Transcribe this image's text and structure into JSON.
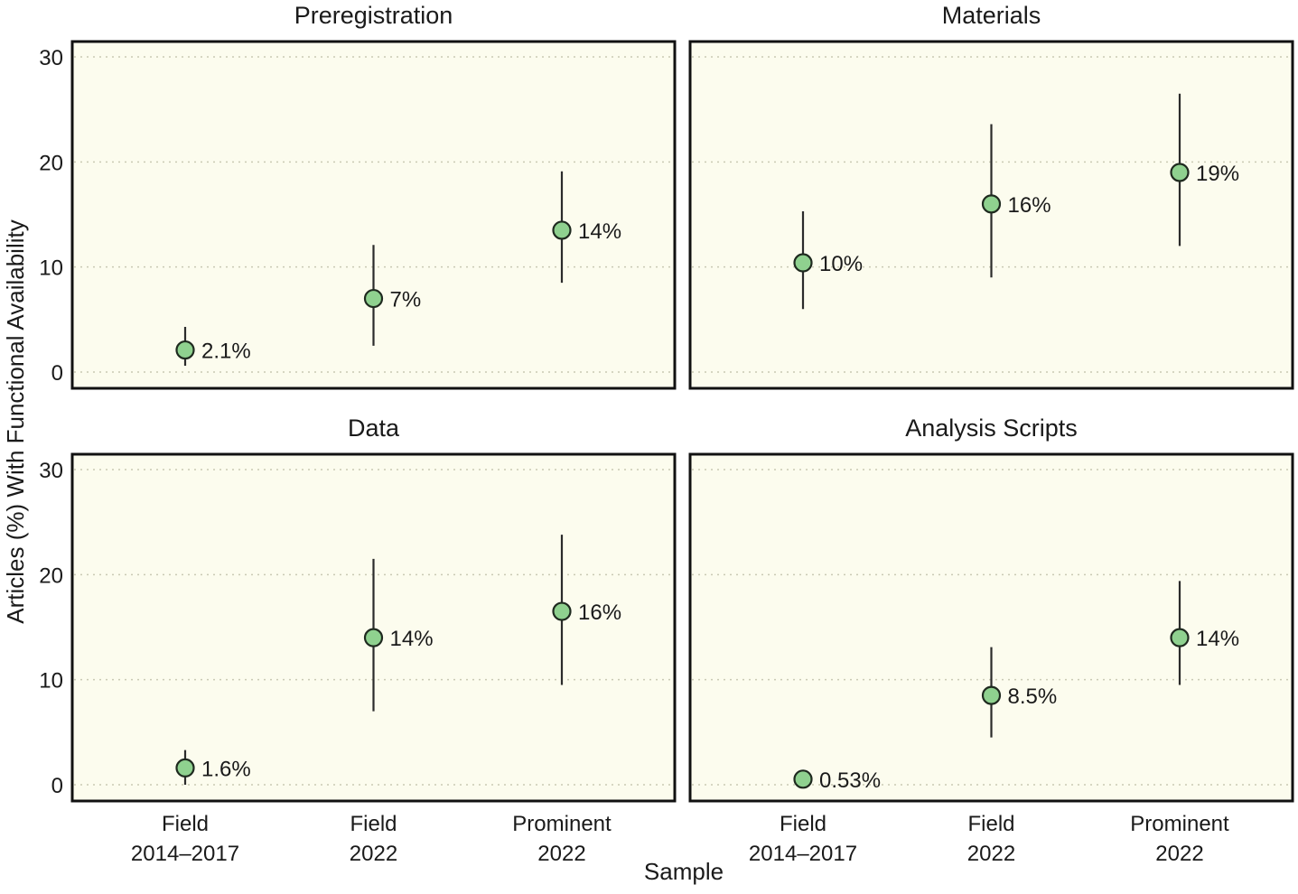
{
  "chart_data": [
    {
      "type": "scatter",
      "title": "Preregistration",
      "categories": [
        [
          "Field",
          "2014–2017"
        ],
        [
          "Field",
          "2022"
        ],
        [
          "Prominent",
          "2022"
        ]
      ],
      "values": [
        2.1,
        7,
        13.5
      ],
      "lower": [
        0.6,
        2.5,
        8.5
      ],
      "upper": [
        4.3,
        12.1,
        19.1
      ],
      "labels": [
        "2.1%",
        "7%",
        "14%"
      ],
      "ylim": [
        0,
        30
      ],
      "yticks": [
        0,
        10,
        20,
        30
      ],
      "grid": true
    },
    {
      "type": "scatter",
      "title": "Materials",
      "categories": [
        [
          "Field",
          "2014–2017"
        ],
        [
          "Field",
          "2022"
        ],
        [
          "Prominent",
          "2022"
        ]
      ],
      "values": [
        10.4,
        16,
        19
      ],
      "lower": [
        6,
        9,
        12
      ],
      "upper": [
        15.3,
        23.6,
        26.5
      ],
      "labels": [
        "10%",
        "16%",
        "19%"
      ],
      "ylim": [
        0,
        30
      ],
      "yticks": [
        0,
        10,
        20,
        30
      ],
      "grid": true
    },
    {
      "type": "scatter",
      "title": "Data",
      "categories": [
        [
          "Field",
          "2014–2017"
        ],
        [
          "Field",
          "2022"
        ],
        [
          "Prominent",
          "2022"
        ]
      ],
      "values": [
        1.6,
        14,
        16.5
      ],
      "lower": [
        0,
        7,
        9.5
      ],
      "upper": [
        3.3,
        21.5,
        23.8
      ],
      "labels": [
        "1.6%",
        "14%",
        "16%"
      ],
      "ylim": [
        0,
        30
      ],
      "yticks": [
        0,
        10,
        20,
        30
      ],
      "grid": true
    },
    {
      "type": "scatter",
      "title": "Analysis Scripts",
      "categories": [
        [
          "Field",
          "2014–2017"
        ],
        [
          "Field",
          "2022"
        ],
        [
          "Prominent",
          "2022"
        ]
      ],
      "values": [
        0.53,
        8.5,
        14
      ],
      "lower": [
        0.53,
        4.5,
        9.5
      ],
      "upper": [
        0.53,
        13.1,
        19.4
      ],
      "labels": [
        "0.53%",
        "8.5%",
        "14%"
      ],
      "ylim": [
        0,
        30
      ],
      "yticks": [
        0,
        10,
        20,
        30
      ],
      "grid": true
    }
  ],
  "xlabel": "Sample",
  "ylabel": "Articles (%) With Functional Availability",
  "colors": {
    "point_fill": "#8fd18f",
    "panel_background": "#fcfcee"
  }
}
